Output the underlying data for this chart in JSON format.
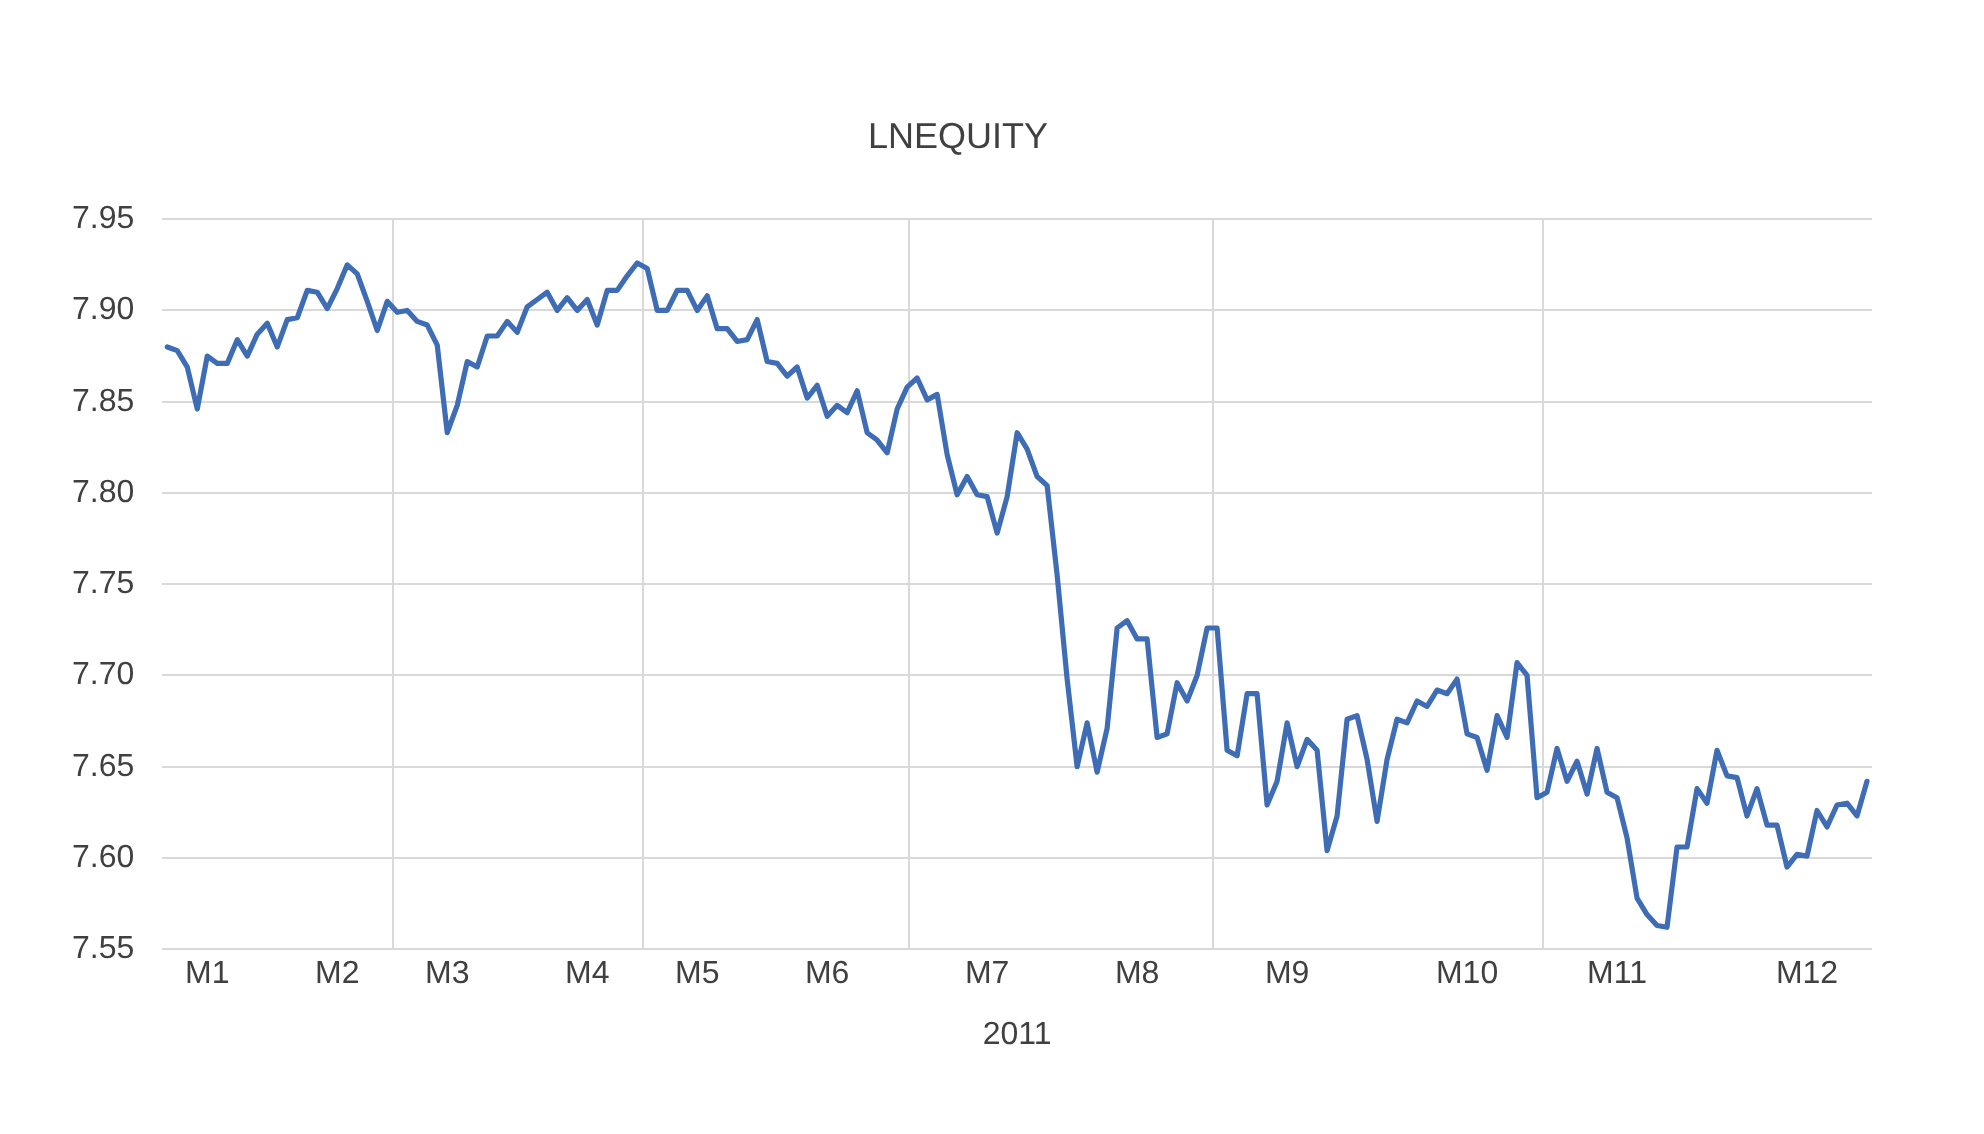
{
  "chart_data": {
    "type": "line",
    "title": "LNEQUITY",
    "xlabel": "2011",
    "categories": [
      null,
      null,
      null,
      null,
      "M1",
      null,
      null,
      null,
      null,
      null,
      null,
      null,
      null,
      null,
      null,
      null,
      null,
      "M2",
      null,
      null,
      null,
      null,
      null,
      null,
      null,
      null,
      null,
      null,
      "M3",
      null,
      null,
      null,
      null,
      null,
      null,
      null,
      null,
      null,
      null,
      null,
      null,
      null,
      "M4",
      null,
      null,
      null,
      null,
      null,
      null,
      null,
      null,
      null,
      null,
      "M5",
      null,
      null,
      null,
      null,
      null,
      null,
      null,
      null,
      null,
      null,
      null,
      null,
      "M6",
      null,
      null,
      null,
      null,
      null,
      null,
      null,
      null,
      null,
      null,
      null,
      null,
      null,
      null,
      null,
      "M7",
      null,
      null,
      null,
      null,
      null,
      null,
      null,
      null,
      null,
      null,
      null,
      null,
      null,
      null,
      "M8",
      null,
      null,
      null,
      null,
      null,
      null,
      null,
      null,
      null,
      null,
      null,
      null,
      null,
      null,
      "M9",
      null,
      null,
      null,
      null,
      null,
      null,
      null,
      null,
      null,
      null,
      null,
      null,
      null,
      null,
      null,
      null,
      null,
      "M10",
      null,
      null,
      null,
      null,
      null,
      null,
      null,
      null,
      null,
      null,
      null,
      null,
      null,
      null,
      "M11",
      null,
      null,
      null,
      null,
      null,
      null,
      null,
      null,
      null,
      null,
      null,
      null,
      null,
      null,
      null,
      null,
      null,
      null,
      "M12",
      null,
      null,
      null,
      null,
      null,
      null
    ],
    "ylim": [
      7.55,
      7.95
    ],
    "yticks": [
      {
        "value": 7.55,
        "label": "7.55"
      },
      {
        "value": 7.6,
        "label": "7.60"
      },
      {
        "value": 7.65,
        "label": "7.65"
      },
      {
        "value": 7.7,
        "label": "7.70"
      },
      {
        "value": 7.75,
        "label": "7.75"
      },
      {
        "value": 7.8,
        "label": "7.80"
      },
      {
        "value": 7.85,
        "label": "7.85"
      },
      {
        "value": 7.9,
        "label": "7.90"
      },
      {
        "value": 7.95,
        "label": "7.95"
      }
    ],
    "grid": true,
    "marker": "none",
    "line_style": "solid",
    "legend": false,
    "series": [
      {
        "color": "#3e6db5",
        "values": [
          7.88,
          7.878,
          7.869,
          7.846,
          7.875,
          7.871,
          7.871,
          7.884,
          7.875,
          7.887,
          7.893,
          7.88,
          7.895,
          7.896,
          7.911,
          7.91,
          7.901,
          7.912,
          7.925,
          7.92,
          7.905,
          7.889,
          7.905,
          7.899,
          7.9,
          7.894,
          7.892,
          7.881,
          7.833,
          7.848,
          7.872,
          7.869,
          7.886,
          7.886,
          7.894,
          7.888,
          7.902,
          7.906,
          7.91,
          7.9,
          7.907,
          7.9,
          7.906,
          7.892,
          7.911,
          7.911,
          7.919,
          7.926,
          7.923,
          7.9,
          7.9,
          7.911,
          7.911,
          7.9,
          7.908,
          7.89,
          7.89,
          7.883,
          7.884,
          7.895,
          7.872,
          7.871,
          7.864,
          7.869,
          7.852,
          7.859,
          7.842,
          7.848,
          7.844,
          7.856,
          7.833,
          7.829,
          7.822,
          7.846,
          7.858,
          7.863,
          7.851,
          7.854,
          7.821,
          7.799,
          7.809,
          7.799,
          7.798,
          7.778,
          7.798,
          7.833,
          7.824,
          7.809,
          7.804,
          7.755,
          7.698,
          7.65,
          7.674,
          7.647,
          7.671,
          7.726,
          7.73,
          7.72,
          7.72,
          7.666,
          7.668,
          7.696,
          7.686,
          7.7,
          7.726,
          7.726,
          7.659,
          7.656,
          7.69,
          7.69,
          7.629,
          7.642,
          7.674,
          7.65,
          7.665,
          7.659,
          7.604,
          7.623,
          7.676,
          7.678,
          7.654,
          7.62,
          7.654,
          7.676,
          7.674,
          7.686,
          7.683,
          7.692,
          7.69,
          7.698,
          7.668,
          7.666,
          7.648,
          7.678,
          7.666,
          7.707,
          7.7,
          7.633,
          7.636,
          7.66,
          7.642,
          7.653,
          7.635,
          7.66,
          7.636,
          7.633,
          7.611,
          7.578,
          7.569,
          7.563,
          7.562,
          7.606,
          7.606,
          7.638,
          7.63,
          7.659,
          7.645,
          7.644,
          7.623,
          7.638,
          7.618,
          7.618,
          7.595,
          7.602,
          7.601,
          7.626,
          7.617,
          7.629,
          7.63,
          7.623,
          7.642
        ]
      }
    ]
  }
}
